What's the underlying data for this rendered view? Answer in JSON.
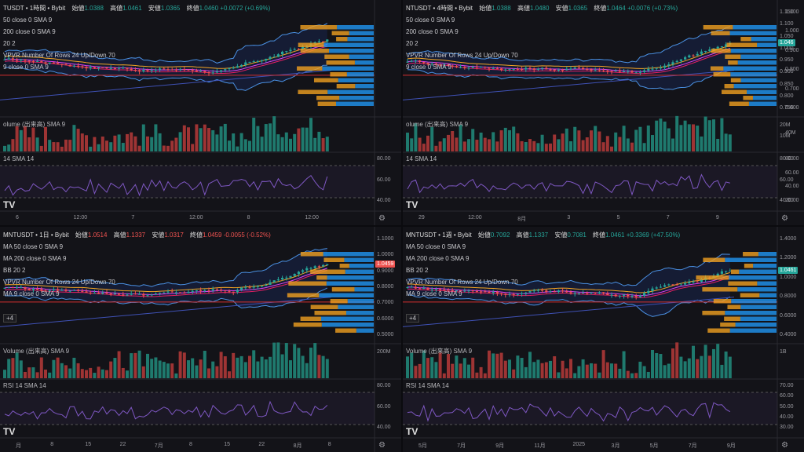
{
  "charts": [
    {
      "id": "tl",
      "symbol": "TUSDT",
      "interval": "1時間",
      "exchange": "Bybit",
      "ohlc": {
        "open_label": "始値",
        "open": "1.0388",
        "high_label": "高値",
        "high": "1.0461",
        "low_label": "安値",
        "low": "1.0365",
        "close_label": "終値",
        "close": "1.0460",
        "change": "+0.0072 (+0.69%)",
        "change_dir": "up"
      },
      "indicators": [
        "50 close 0 SMA 9",
        "200 close 0 SMA 9",
        "20 2",
        "VPVR Number Of Rows 24 Up/Down 70",
        "9 close 0 SMA 9"
      ],
      "volume_label": "olume (出来高) SMA 9",
      "rsi_label": "14 SMA 14",
      "y_ticks": [],
      "rsi_ticks": [
        "80.00",
        "60.00",
        "40.00"
      ],
      "x_ticks": [
        "6",
        "12:00",
        "7",
        "12:00",
        "8",
        "12:00"
      ],
      "price_tag": "",
      "volume_ticks": []
    },
    {
      "id": "tr",
      "symbol": "NTUSDT",
      "interval": "4時間",
      "exchange": "Bybit",
      "ohlc": {
        "open_label": "始値",
        "open": "1.0388",
        "high_label": "高値",
        "high": "1.0480",
        "low_label": "安値",
        "low": "1.0365",
        "close_label": "終値",
        "close": "1.0464",
        "change": "+0.0076 (+0.73%)",
        "change_dir": "up"
      },
      "indicators": [
        "50 close 0 SMA 9",
        "200 close 0 SMA 9",
        "20 2",
        "VPVR Number Of Rows 24 Up/Down 70",
        "9 close 0 SMA 9"
      ],
      "volume_label": "olume (出来高) SMA 9",
      "rsi_label": "14 SMA 14",
      "y_ticks": [
        "1.150",
        "1.100",
        "1.050",
        "1.000",
        "0.950",
        "0.900",
        "0.850",
        "0.800",
        "0.750"
      ],
      "y_ticks_right": [
        "1.100",
        "1.000",
        "0.900",
        "0.800",
        "0.700",
        "0.600"
      ],
      "rsi_ticks": [
        "80.00",
        "60.00",
        "40.00"
      ],
      "rsi_ticks_right": [
        "80.00",
        "60.00",
        "40.00",
        "20.00"
      ],
      "x_ticks": [
        "29",
        "12:00",
        "8月",
        "3",
        "5",
        "7",
        "9"
      ],
      "price_tag": "1.046",
      "volume_ticks": [
        "20M",
        "10M"
      ],
      "volume_ticks_right": [
        "40M"
      ]
    },
    {
      "id": "bl",
      "symbol": "MNTUSDT",
      "interval": "1日",
      "exchange": "Bybit",
      "ohlc": {
        "open_label": "始値",
        "open": "1.0514",
        "high_label": "高値",
        "high": "1.1337",
        "low_label": "安値",
        "low": "1.0317",
        "close_label": "終値",
        "close": "1.0459",
        "change": "-0.0055 (-0.52%)",
        "change_dir": "down"
      },
      "indicators": [
        "MA 50 close 0 SMA 9",
        "MA 200 close 0 SMA 9",
        "BB 20 2",
        "VPVR Number Of Rows 24 Up/Down 70",
        "MA 9 close 0 SMA 9"
      ],
      "volume_label": "Volume (出来高) SMA 9",
      "rsi_label": "RSI 14 SMA 14",
      "y_ticks": [
        "1.1000",
        "1.0000",
        "0.9000",
        "0.8000",
        "0.7000",
        "0.6000",
        "0.5000"
      ],
      "rsi_ticks": [
        "80.00",
        "60.00",
        "40.00"
      ],
      "x_ticks": [
        "月",
        "8",
        "15",
        "22",
        "7月",
        "8",
        "15",
        "22",
        "8月",
        "8"
      ],
      "price_tag": "1.0459",
      "volume_ticks": [
        "200M"
      ]
    },
    {
      "id": "br",
      "symbol": "MNTUSDT",
      "interval": "1週",
      "exchange": "Bybit",
      "ohlc": {
        "open_label": "始値",
        "open": "0.7092",
        "high_label": "高値",
        "high": "1.1337",
        "low_label": "安値",
        "low": "0.7081",
        "close_label": "終値",
        "close": "1.0461",
        "change": "+0.3369 (+47.50%)",
        "change_dir": "up"
      },
      "indicators": [
        "MA 50 close 0 SMA 9",
        "MA 200 close 0 SMA 9",
        "BB 20 2",
        "VPVR Number Of Rows 24 Up/Down 70",
        "MA 9 close 0 SMA 9"
      ],
      "volume_label": "Volume (出来高) SMA 9",
      "rsi_label": "RSI 14 SMA 14",
      "y_ticks": [
        "1.4000",
        "1.2000",
        "1.0000",
        "0.8000",
        "0.6000",
        "0.4000"
      ],
      "rsi_ticks": [
        "70.00",
        "60.00",
        "50.00",
        "40.00",
        "30.00"
      ],
      "x_ticks": [
        "5月",
        "7月",
        "9月",
        "11月",
        "2025",
        "3月",
        "5月",
        "7月",
        "9月"
      ],
      "price_tag": "1.0461",
      "volume_ticks": [
        "1B"
      ]
    }
  ],
  "colors": {
    "up": "#26a69a",
    "down": "#ef5350",
    "bb": "#2962ff",
    "ma9": "#e040fb",
    "vpvr_up": "#2196f3",
    "vpvr_down": "#f0a020",
    "rsi": "#7e57c2"
  },
  "common": {
    "collapse_glyph": "+4",
    "logo": "TV",
    "gear_icon": "gear-icon"
  }
}
